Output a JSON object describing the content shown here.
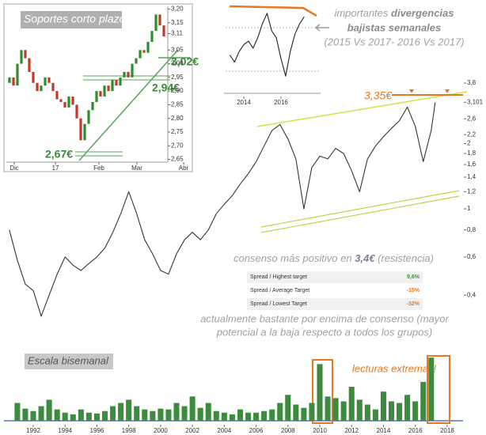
{
  "chart_data": [
    {
      "type": "line",
      "log_y": true,
      "color": "#2f3a2f",
      "x": [
        1990.5,
        1991,
        1991.5,
        1992,
        1992.5,
        1993,
        1993.5,
        1994,
        1994.5,
        1995,
        1995.5,
        1996,
        1996.5,
        1997,
        1997.5,
        1998,
        1998.5,
        1999,
        1999.5,
        2000,
        2000.5,
        2001,
        2001.5,
        2002,
        2002.5,
        2003,
        2003.5,
        2004,
        2004.5,
        2005,
        2005.5,
        2006,
        2006.5,
        2007,
        2007.5,
        2008,
        2008.5,
        2009,
        2009.5,
        2010,
        2010.5,
        2011,
        2011.5,
        2012,
        2012.5,
        2013,
        2013.5,
        2014,
        2014.5,
        2015,
        2015.5,
        2016,
        2016.5,
        2017,
        2017.25
      ],
      "values": [
        0.8,
        0.58,
        0.45,
        0.42,
        0.32,
        0.4,
        0.5,
        0.6,
        0.55,
        0.52,
        0.56,
        0.6,
        0.66,
        0.78,
        0.95,
        1.2,
        0.95,
        0.72,
        0.62,
        0.52,
        0.5,
        0.62,
        0.72,
        0.78,
        0.72,
        0.8,
        0.95,
        1.05,
        1.15,
        1.3,
        1.45,
        1.65,
        1.95,
        2.3,
        2.45,
        2.1,
        1.7,
        1.0,
        1.55,
        1.75,
        1.7,
        1.9,
        1.8,
        1.5,
        1.2,
        1.7,
        1.95,
        2.15,
        2.35,
        2.55,
        2.95,
        2.4,
        1.65,
        2.3,
        3.1
      ],
      "xlim": [
        1990.16,
        2019
      ],
      "ylim": [
        0.27,
        4
      ],
      "yticks": [
        {
          "value": 3.8,
          "label": "3,8"
        },
        {
          "value": 3.101,
          "label": "3,101"
        },
        {
          "value": 2.6,
          "label": "2,6"
        },
        {
          "value": 2.2,
          "label": "2,2"
        },
        2,
        {
          "value": 1.8,
          "label": "1,8"
        },
        {
          "value": 1.6,
          "label": "1,6"
        },
        {
          "value": 1.4,
          "label": "1,4"
        },
        {
          "value": 1.2,
          "label": "1,2"
        },
        1,
        {
          "value": 0.8,
          "label": "0,8"
        },
        {
          "value": 0.6,
          "label": "0,6"
        },
        {
          "value": 0.4,
          "label": "0,4"
        }
      ],
      "annotations": [
        "3,35€",
        "consenso más positivo en ",
        "3,4€",
        " (resistencia)",
        "actualmente bastante por encima de consenso (mayor",
        "potencial a la baja respecto a todos los grupos)"
      ],
      "table": {
        "rows": [
          [
            "Spread / Highest target",
            "9,6%"
          ],
          [
            "Spread / Average Target",
            "-15%"
          ],
          [
            "Spread / Lowest Target",
            "-32%"
          ]
        ],
        "value_colors": [
          "#2e9e2e",
          "#e87722",
          "#e87722"
        ]
      }
    },
    {
      "type": "candlestick",
      "title": "Soportes corto plazo",
      "up_color": "#2e8b2e",
      "down_color": "#c0392b",
      "open": [
        2.93,
        2.95,
        2.92,
        3.0,
        3.05,
        3.02,
        2.97,
        2.93,
        2.9,
        2.92,
        2.95,
        2.93,
        2.9,
        2.87,
        2.86,
        2.84,
        2.88,
        2.85,
        2.8,
        2.72,
        2.78,
        2.83,
        2.86,
        2.9,
        2.88,
        2.92,
        2.9,
        2.94,
        2.92,
        2.95,
        2.97,
        2.95,
        3.0,
        3.02,
        3.05,
        3.04,
        3.08,
        3.12,
        3.18,
        3.14
      ],
      "close": [
        2.95,
        2.92,
        3.0,
        3.05,
        3.02,
        2.97,
        2.93,
        2.9,
        2.92,
        2.95,
        2.93,
        2.9,
        2.87,
        2.86,
        2.84,
        2.88,
        2.85,
        2.8,
        2.72,
        2.78,
        2.83,
        2.86,
        2.9,
        2.88,
        2.92,
        2.9,
        2.94,
        2.92,
        2.95,
        2.97,
        2.95,
        3.0,
        3.02,
        3.05,
        3.04,
        3.08,
        3.12,
        3.18,
        3.14,
        3.1
      ],
      "xlim": [
        -0.4,
        45.6
      ],
      "ylim": [
        2.64,
        3.21
      ],
      "xticks": [
        {
          "value": 1.2,
          "label": "Dic"
        },
        {
          "value": 11.6,
          "label": "17"
        },
        {
          "value": 22.6,
          "label": "Feb"
        },
        {
          "value": 32.2,
          "label": "Mar"
        },
        {
          "value": 44,
          "label": "Abr"
        }
      ],
      "yticks": [
        {
          "value": 3.2,
          "label": "3,20"
        },
        {
          "value": 3.15,
          "label": "3,15"
        },
        {
          "value": 3.11,
          "label": "3,11"
        },
        {
          "value": 3.05,
          "label": "3,05"
        },
        {
          "value": 3.0,
          "label": "3,00"
        },
        {
          "value": 2.95,
          "label": "2,95"
        },
        {
          "value": 2.9,
          "label": "2,90"
        },
        {
          "value": 2.85,
          "label": "2,85"
        },
        {
          "value": 2.8,
          "label": "2,80"
        },
        {
          "value": 2.75,
          "label": "2,75"
        },
        {
          "value": 2.7,
          "label": "2,70"
        },
        {
          "value": 2.65,
          "label": "2,65"
        }
      ],
      "annotations": [
        "3,02€",
        "2,94€",
        "2,67€"
      ]
    },
    {
      "type": "line",
      "color": "#222",
      "x": [
        2013.25,
        2013.5,
        2013.75,
        2014,
        2014.25,
        2014.5,
        2014.75,
        2015,
        2015.25,
        2015.5,
        2015.75,
        2016,
        2016.25,
        2016.5,
        2016.75,
        2017,
        2017.25
      ],
      "values": [
        2.0,
        1.8,
        2.1,
        2.3,
        2.4,
        2.2,
        2.5,
        2.9,
        3.2,
        2.7,
        2.5,
        1.9,
        1.4,
        2.1,
        2.6,
        2.9,
        3.1
      ],
      "xlim": [
        2013.02,
        2018.13
      ],
      "ylim": [
        1.2,
        3.4
      ],
      "xticks": [
        2014,
        2016
      ],
      "annotations": [
        "importantes ",
        "divergencias",
        "bajistas semanales",
        "(2015 Vs 2017- 2016 Vs 2017)"
      ]
    },
    {
      "type": "bar",
      "title": "Escala bisemanal",
      "color": "#3d8b3d",
      "x": [
        1991,
        1991.5,
        1992,
        1992.5,
        1993,
        1993.5,
        1994,
        1994.5,
        1995,
        1995.5,
        1996,
        1996.5,
        1997,
        1997.5,
        1998,
        1998.5,
        1999,
        1999.5,
        2000,
        2000.5,
        2001,
        2001.5,
        2002,
        2002.5,
        2003,
        2003.5,
        2004,
        2004.5,
        2005,
        2005.5,
        2006,
        2006.5,
        2007,
        2007.5,
        2008,
        2008.5,
        2009,
        2009.5,
        2010,
        2010.5,
        2011,
        2011.5,
        2012,
        2012.5,
        2013,
        2013.5,
        2014,
        2014.5,
        2015,
        2015.5,
        2016,
        2016.5,
        2017
      ],
      "values": [
        22,
        15,
        12,
        18,
        26,
        14,
        10,
        8,
        14,
        10,
        9,
        12,
        18,
        22,
        26,
        18,
        14,
        12,
        15,
        14,
        22,
        18,
        30,
        16,
        22,
        12,
        10,
        8,
        14,
        10,
        10,
        12,
        14,
        22,
        32,
        20,
        16,
        22,
        70,
        30,
        28,
        24,
        42,
        26,
        20,
        14,
        36,
        24,
        22,
        32,
        24,
        48,
        78
      ],
      "xlim": [
        1990.16,
        2019
      ],
      "ylim": [
        0,
        85
      ],
      "xticks": [
        1992,
        1994,
        1996,
        1998,
        2000,
        2002,
        2004,
        2006,
        2008,
        2010,
        2012,
        2014,
        2016,
        2018
      ],
      "annotations": [
        "lecturas extremas!"
      ]
    }
  ]
}
